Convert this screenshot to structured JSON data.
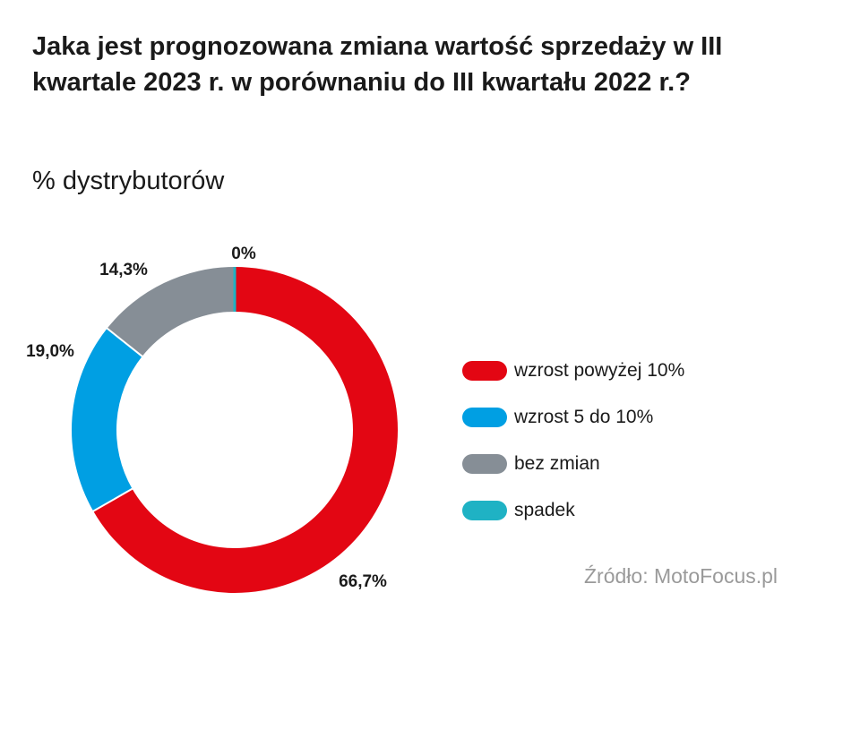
{
  "title": "Jaka jest prognozowana zmiana wartość sprzedaży w III kwartale 2023 r. w porównaniu do III kwartału 2022 r.?",
  "subtitle": "% dystrybutorów",
  "source": "Źródło: MotoFocus.pl",
  "chart_data": {
    "type": "pie",
    "donut": true,
    "legend_position": "right",
    "series": [
      {
        "name": "wzrost powyżej 10%",
        "value": 66.7,
        "label": "66,7%",
        "color": "#e30613"
      },
      {
        "name": "wzrost 5 do 10%",
        "value": 19.0,
        "label": "19,0%",
        "color": "#009fe3"
      },
      {
        "name": "bez zmian",
        "value": 14.3,
        "label": "14,3%",
        "color": "#868e96"
      },
      {
        "name": "spadek",
        "value": 0,
        "label": "0%",
        "color": "#1fb2c4"
      }
    ]
  }
}
